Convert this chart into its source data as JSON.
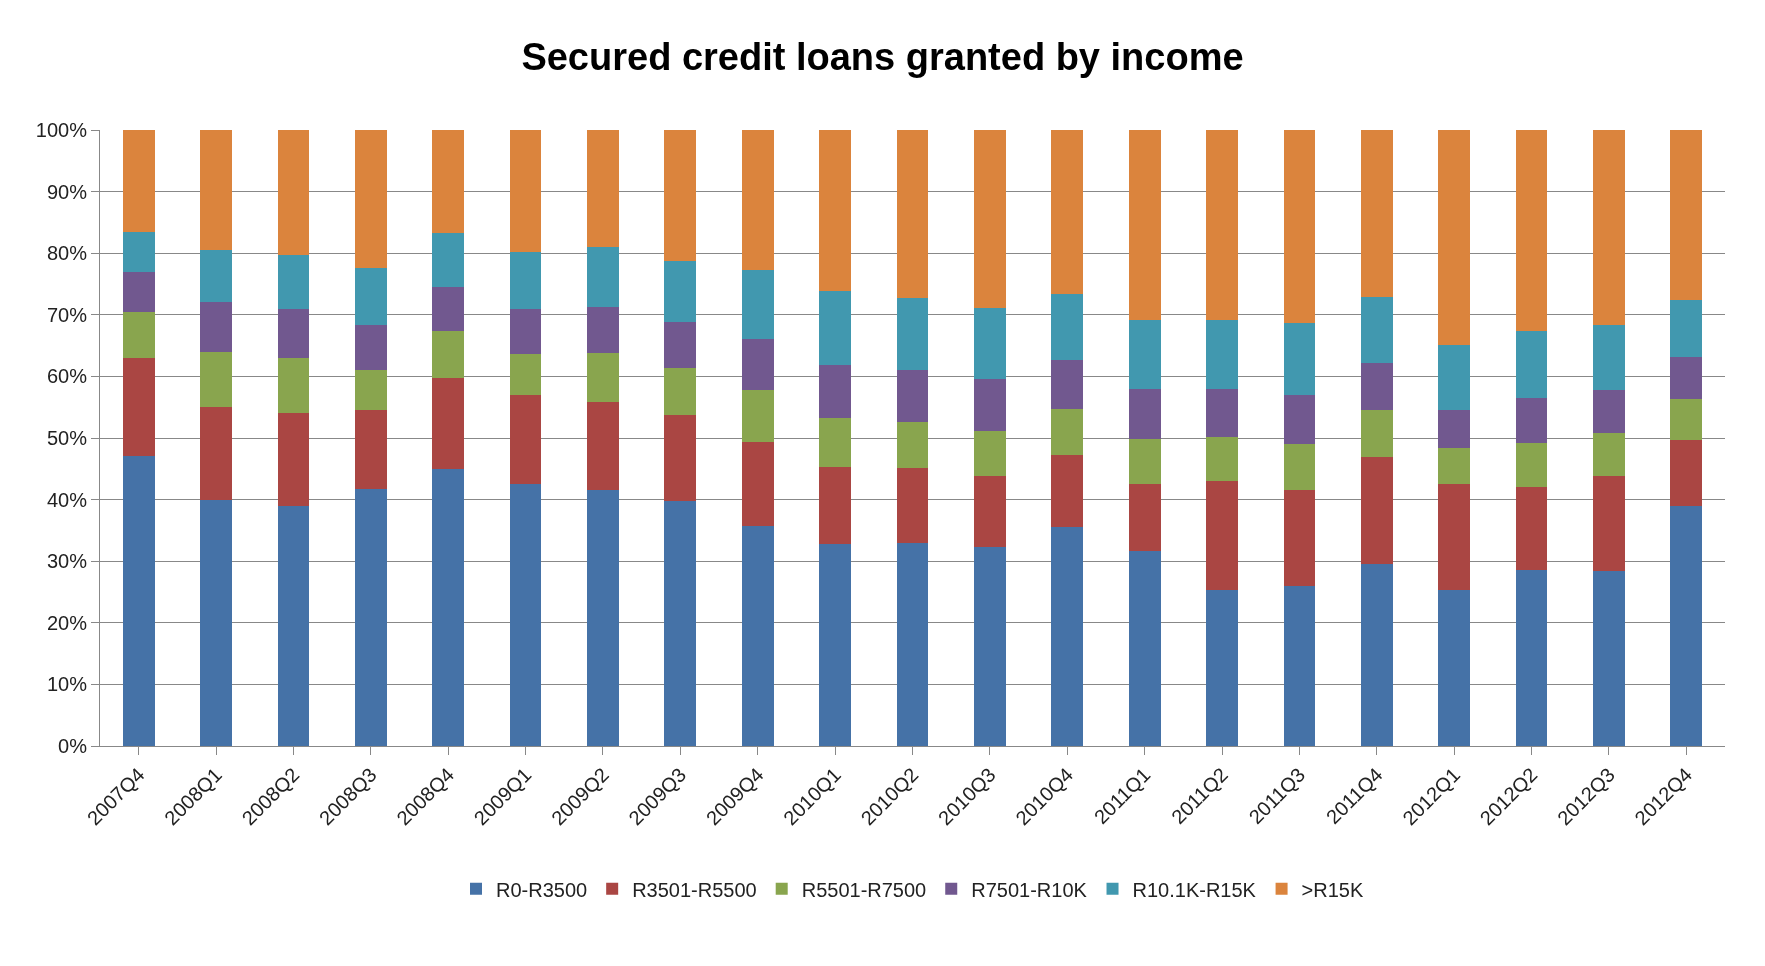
{
  "chart_data": {
    "type": "bar",
    "stacked": true,
    "title": "Secured credit loans granted by income",
    "categories": [
      "2007Q4",
      "2008Q1",
      "2008Q2",
      "2008Q3",
      "2008Q4",
      "2009Q1",
      "2009Q2",
      "2009Q3",
      "2009Q4",
      "2010Q1",
      "2010Q2",
      "2010Q3",
      "2010Q4",
      "2011Q1",
      "2011Q2",
      "2011Q3",
      "2011Q4",
      "2012Q1",
      "2012Q2",
      "2012Q3",
      "2012Q4"
    ],
    "series": [
      {
        "name": "R0-R3500",
        "color": "#4572a7",
        "values": [
          47,
          40,
          39,
          41.7,
          45,
          42.5,
          41.5,
          39.7,
          35.7,
          32.8,
          33,
          32.3,
          35.5,
          31.6,
          25.4,
          25.9,
          29.6,
          25.4,
          28.6,
          28.4,
          39
        ]
      },
      {
        "name": "R3501-R5500",
        "color": "#aa4643",
        "values": [
          16,
          15,
          15,
          12.8,
          14.7,
          14.5,
          14.3,
          14.1,
          13.7,
          12.5,
          12.1,
          11.6,
          11.7,
          11,
          17.6,
          15.6,
          17.3,
          17.1,
          13.5,
          15.5,
          10.7
        ]
      },
      {
        "name": "R5501-R7500",
        "color": "#89a54e",
        "values": [
          7.5,
          9,
          9,
          6.5,
          7.7,
          6.6,
          8,
          7.5,
          8.4,
          8,
          7.5,
          7.3,
          7.5,
          7.3,
          7.1,
          7.5,
          7.7,
          5.8,
          7.1,
          6.9,
          6.6
        ]
      },
      {
        "name": "R7501-R10K",
        "color": "#71588f",
        "values": [
          6.5,
          8,
          8,
          7.3,
          7.1,
          7.3,
          7.5,
          7.5,
          8.3,
          8.6,
          8.5,
          8.3,
          8,
          8,
          7.8,
          8,
          7.5,
          6.3,
          7.3,
          7,
          6.8
        ]
      },
      {
        "name": "R10.1K-R15K",
        "color": "#4198af",
        "values": [
          6.5,
          8.5,
          8.7,
          9.3,
          8.8,
          9.3,
          9.7,
          10,
          11.1,
          11.9,
          11.6,
          11.6,
          10.7,
          11.3,
          11.2,
          11.6,
          10.8,
          10.5,
          10.9,
          10.5,
          9.3
        ]
      },
      {
        "name": ">R15K",
        "color": "#db843d",
        "values": [
          16.5,
          19.5,
          20.3,
          22.4,
          16.7,
          19.8,
          19,
          21.2,
          22.8,
          26.2,
          27.3,
          28.9,
          26.6,
          30.8,
          30.9,
          31.4,
          27.1,
          34.9,
          32.6,
          31.7,
          27.6
        ]
      }
    ],
    "ylim": [
      0,
      100
    ],
    "yticks": [
      {
        "value": 0,
        "label": "0%"
      },
      {
        "value": 10,
        "label": "10%"
      },
      {
        "value": 20,
        "label": "20%"
      },
      {
        "value": 30,
        "label": "30%"
      },
      {
        "value": 40,
        "label": "40%"
      },
      {
        "value": 50,
        "label": "50%"
      },
      {
        "value": 60,
        "label": "60%"
      },
      {
        "value": 70,
        "label": "70%"
      },
      {
        "value": 80,
        "label": "80%"
      },
      {
        "value": 90,
        "label": "90%"
      },
      {
        "value": 100,
        "label": "100%"
      }
    ],
    "grid": "y",
    "legend": "bottom"
  }
}
